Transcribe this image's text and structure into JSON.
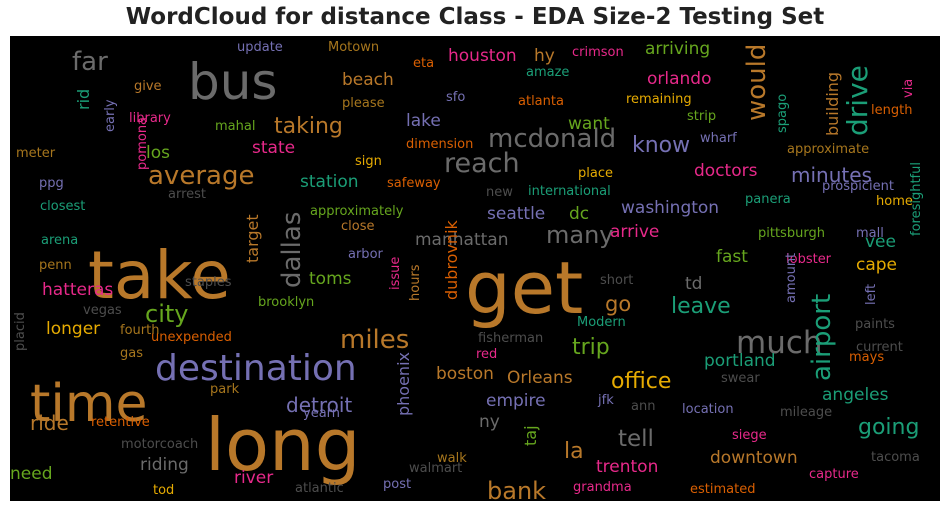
{
  "title": "WordCloud for distance Class - EDA Size-2 Testing Set",
  "palette": {
    "orange": "#b8782a",
    "gray": "#6b6b6b",
    "purple": "#7570b3",
    "green": "#1b9e77",
    "magenta": "#e7298a",
    "lime": "#66a61e",
    "gold": "#e6ab02",
    "tangerine": "#d95f02",
    "dimgray": "#4d4d4d",
    "darkgray": "#5e5e5e",
    "rust": "#a6761d",
    "background": "#000000"
  },
  "words": [
    {
      "text": "long",
      "color": "orange"
    },
    {
      "text": "get",
      "color": "orange"
    },
    {
      "text": "take",
      "color": "orange"
    },
    {
      "text": "time",
      "color": "orange"
    },
    {
      "text": "bus",
      "color": "gray"
    },
    {
      "text": "destination",
      "color": "purple"
    },
    {
      "text": "much",
      "color": "gray"
    },
    {
      "text": "miles",
      "color": "orange"
    },
    {
      "text": "average",
      "color": "orange"
    },
    {
      "text": "reach",
      "color": "gray"
    },
    {
      "text": "mcdonald",
      "color": "gray"
    },
    {
      "text": "far",
      "color": "gray"
    },
    {
      "text": "city",
      "color": "lime"
    },
    {
      "text": "drive",
      "color": "green"
    },
    {
      "text": "would",
      "color": "orange"
    },
    {
      "text": "airport",
      "color": "green"
    },
    {
      "text": "dallas",
      "color": "gray"
    },
    {
      "text": "bank",
      "color": "orange"
    },
    {
      "text": "many",
      "color": "gray"
    },
    {
      "text": "taking",
      "color": "orange"
    },
    {
      "text": "going",
      "color": "green"
    },
    {
      "text": "tell",
      "color": "gray"
    },
    {
      "text": "trip",
      "color": "lime"
    },
    {
      "text": "know",
      "color": "purple"
    },
    {
      "text": "office",
      "color": "gold"
    },
    {
      "text": "leave",
      "color": "green"
    },
    {
      "text": "detroit",
      "color": "purple"
    },
    {
      "text": "ride",
      "color": "orange"
    },
    {
      "text": "minutes",
      "color": "purple"
    },
    {
      "text": "houston",
      "color": "magenta"
    },
    {
      "text": "arriving",
      "color": "lime"
    },
    {
      "text": "orlando",
      "color": "magenta"
    },
    {
      "text": "beach",
      "color": "orange"
    },
    {
      "text": "los",
      "color": "lime"
    },
    {
      "text": "state",
      "color": "magenta"
    },
    {
      "text": "station",
      "color": "green"
    },
    {
      "text": "seattle",
      "color": "purple"
    },
    {
      "text": "dc",
      "color": "lime"
    },
    {
      "text": "washington",
      "color": "purple"
    },
    {
      "text": "manhattan",
      "color": "gray"
    },
    {
      "text": "arrive",
      "color": "magenta"
    },
    {
      "text": "doctors",
      "color": "magenta"
    },
    {
      "text": "want",
      "color": "lime"
    },
    {
      "text": "lake",
      "color": "purple"
    },
    {
      "text": "hy",
      "color": "orange"
    },
    {
      "text": "fast",
      "color": "lime"
    },
    {
      "text": "cape",
      "color": "gold"
    },
    {
      "text": "la",
      "color": "orange"
    },
    {
      "text": "go",
      "color": "orange"
    },
    {
      "text": "toms",
      "color": "lime"
    },
    {
      "text": "hatteras",
      "color": "magenta"
    },
    {
      "text": "longer",
      "color": "gold"
    },
    {
      "text": "boston",
      "color": "orange"
    },
    {
      "text": "Orleans",
      "color": "orange"
    },
    {
      "text": "portland",
      "color": "green"
    },
    {
      "text": "angeles",
      "color": "green"
    },
    {
      "text": "empire",
      "color": "purple"
    },
    {
      "text": "ny",
      "color": "gray"
    },
    {
      "text": "trenton",
      "color": "magenta"
    },
    {
      "text": "downtown",
      "color": "orange"
    },
    {
      "text": "riding",
      "color": "gray"
    },
    {
      "text": "river",
      "color": "magenta"
    },
    {
      "text": "need",
      "color": "lime"
    },
    {
      "text": "dubrovnik",
      "color": "tangerine"
    },
    {
      "text": "phoenix",
      "color": "purple"
    },
    {
      "text": "taj",
      "color": "lime"
    },
    {
      "text": "target",
      "color": "orange"
    },
    {
      "text": "building",
      "color": "orange"
    },
    {
      "text": "vee",
      "color": "green"
    },
    {
      "text": "td",
      "color": "gray"
    },
    {
      "text": "rid",
      "color": "green"
    },
    {
      "text": "update",
      "color": "purple"
    },
    {
      "text": "Motown",
      "color": "rust"
    },
    {
      "text": "crimson",
      "color": "magenta"
    },
    {
      "text": "eta",
      "color": "tangerine"
    },
    {
      "text": "amaze",
      "color": "green"
    },
    {
      "text": "via",
      "color": "magenta"
    },
    {
      "text": "give",
      "color": "orange"
    },
    {
      "text": "please",
      "color": "rust"
    },
    {
      "text": "sfo",
      "color": "purple"
    },
    {
      "text": "atlanta",
      "color": "tangerine"
    },
    {
      "text": "remaining",
      "color": "gold"
    },
    {
      "text": "length",
      "color": "tangerine"
    },
    {
      "text": "library",
      "color": "magenta"
    },
    {
      "text": "mahal",
      "color": "lime"
    },
    {
      "text": "early",
      "color": "purple"
    },
    {
      "text": "strip",
      "color": "lime"
    },
    {
      "text": "wharf",
      "color": "purple"
    },
    {
      "text": "spago",
      "color": "green"
    },
    {
      "text": "dimension",
      "color": "tangerine"
    },
    {
      "text": "meter",
      "color": "rust"
    },
    {
      "text": "pomona",
      "color": "magenta"
    },
    {
      "text": "approximate",
      "color": "rust"
    },
    {
      "text": "sign",
      "color": "gold"
    },
    {
      "text": "place",
      "color": "gold"
    },
    {
      "text": "ppg",
      "color": "purple"
    },
    {
      "text": "arrest",
      "color": "dimgray"
    },
    {
      "text": "safeway",
      "color": "tangerine"
    },
    {
      "text": "new",
      "color": "dimgray"
    },
    {
      "text": "international",
      "color": "green"
    },
    {
      "text": "prospicient",
      "color": "purple"
    },
    {
      "text": "closest",
      "color": "green"
    },
    {
      "text": "approximately",
      "color": "lime"
    },
    {
      "text": "panera",
      "color": "green"
    },
    {
      "text": "home",
      "color": "gold"
    },
    {
      "text": "close",
      "color": "orange"
    },
    {
      "text": "arena",
      "color": "green"
    },
    {
      "text": "arbor",
      "color": "purple"
    },
    {
      "text": "pittsburgh",
      "color": "lime"
    },
    {
      "text": "mall",
      "color": "purple"
    },
    {
      "text": "foresightful",
      "color": "green"
    },
    {
      "text": "penn",
      "color": "rust"
    },
    {
      "text": "lobster",
      "color": "magenta"
    },
    {
      "text": "staples",
      "color": "dimgray"
    },
    {
      "text": "issue",
      "color": "magenta"
    },
    {
      "text": "short",
      "color": "dimgray"
    },
    {
      "text": "amount",
      "color": "purple"
    },
    {
      "text": "left",
      "color": "purple"
    },
    {
      "text": "vegas",
      "color": "dimgray"
    },
    {
      "text": "brooklyn",
      "color": "lime"
    },
    {
      "text": "hours",
      "color": "orange"
    },
    {
      "text": "fourth",
      "color": "rust"
    },
    {
      "text": "Modern",
      "color": "green"
    },
    {
      "text": "paints",
      "color": "dimgray"
    },
    {
      "text": "placid",
      "color": "dimgray"
    },
    {
      "text": "unexpended",
      "color": "tangerine"
    },
    {
      "text": "fisherman",
      "color": "dimgray"
    },
    {
      "text": "current",
      "color": "dimgray"
    },
    {
      "text": "gas",
      "color": "rust"
    },
    {
      "text": "red",
      "color": "magenta"
    },
    {
      "text": "mays",
      "color": "tangerine"
    },
    {
      "text": "park",
      "color": "rust"
    },
    {
      "text": "swear",
      "color": "dimgray"
    },
    {
      "text": "jfk",
      "color": "purple"
    },
    {
      "text": "ann",
      "color": "dimgray"
    },
    {
      "text": "location",
      "color": "purple"
    },
    {
      "text": "mileage",
      "color": "dimgray"
    },
    {
      "text": "retentive",
      "color": "tangerine"
    },
    {
      "text": "yearn",
      "color": "purple"
    },
    {
      "text": "motorcoach",
      "color": "dimgray"
    },
    {
      "text": "siege",
      "color": "magenta"
    },
    {
      "text": "walmart",
      "color": "dimgray"
    },
    {
      "text": "tacoma",
      "color": "dimgray"
    },
    {
      "text": "walk",
      "color": "rust"
    },
    {
      "text": "capture",
      "color": "magenta"
    },
    {
      "text": "tod",
      "color": "gold"
    },
    {
      "text": "atlantic",
      "color": "dimgray"
    },
    {
      "text": "post",
      "color": "purple"
    },
    {
      "text": "grandma",
      "color": "magenta"
    },
    {
      "text": "estimated",
      "color": "tangerine"
    }
  ]
}
